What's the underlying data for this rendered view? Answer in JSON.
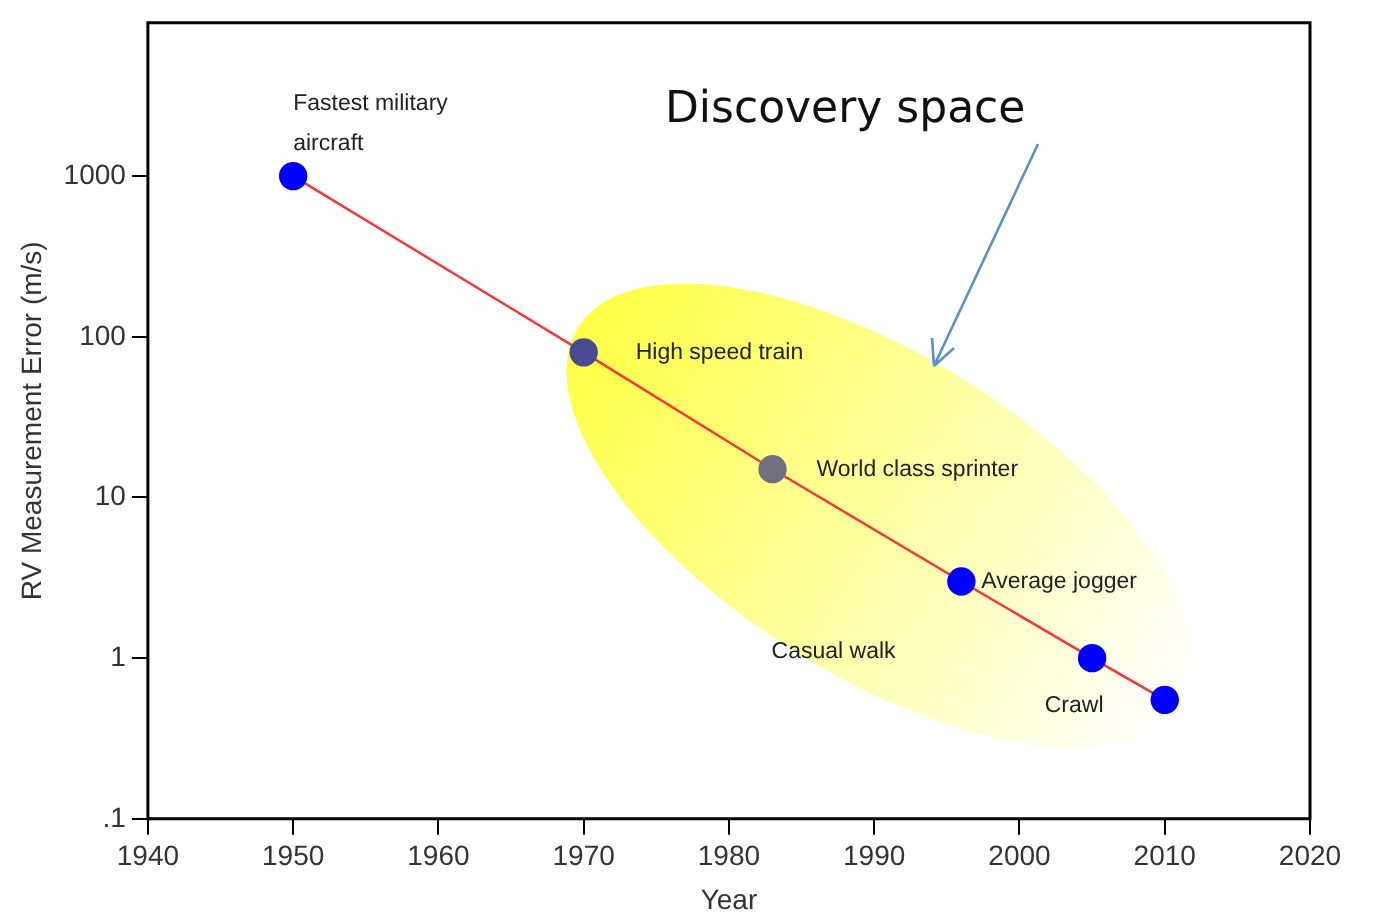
{
  "chart_data": {
    "type": "line",
    "xlabel": "Year",
    "ylabel": "RV Measurement Error (m/s)",
    "x": [
      1950,
      1970,
      1983,
      1996,
      2005,
      2010
    ],
    "series": [
      {
        "color": "#ff3333",
        "colors": [
          "#0000ff",
          "#4a4a90",
          "#707080",
          "#0000ff",
          "#0000ff",
          "#0000ff"
        ],
        "values": [
          1000,
          80,
          15,
          3,
          1,
          0.55
        ]
      }
    ],
    "log": "y",
    "xlim": [
      1940,
      2020
    ],
    "xticks": [
      1940,
      1950,
      1960,
      1970,
      1980,
      1990,
      2000,
      2010,
      2020
    ],
    "ylim": [
      0.1,
      9000
    ],
    "yticks": [
      {
        "value": 0.1,
        "label": ".1"
      },
      1,
      10,
      100,
      1000
    ],
    "grid": false,
    "legend": false,
    "marker": "circle",
    "line_style": "solid",
    "annotations": [
      {
        "text": "Fastest military aircraft",
        "x": 1950,
        "y": 1000
      },
      {
        "text": "High speed train",
        "x": 1970,
        "y": 80
      },
      {
        "text": "World class sprinter",
        "x": 1983,
        "y": 15
      },
      {
        "text": "Average jogger",
        "x": 1996,
        "y": 3
      },
      "Casual walk",
      {
        "text": "Crawl",
        "x": 2010,
        "y": 0.55
      },
      "Discovery space"
    ]
  }
}
